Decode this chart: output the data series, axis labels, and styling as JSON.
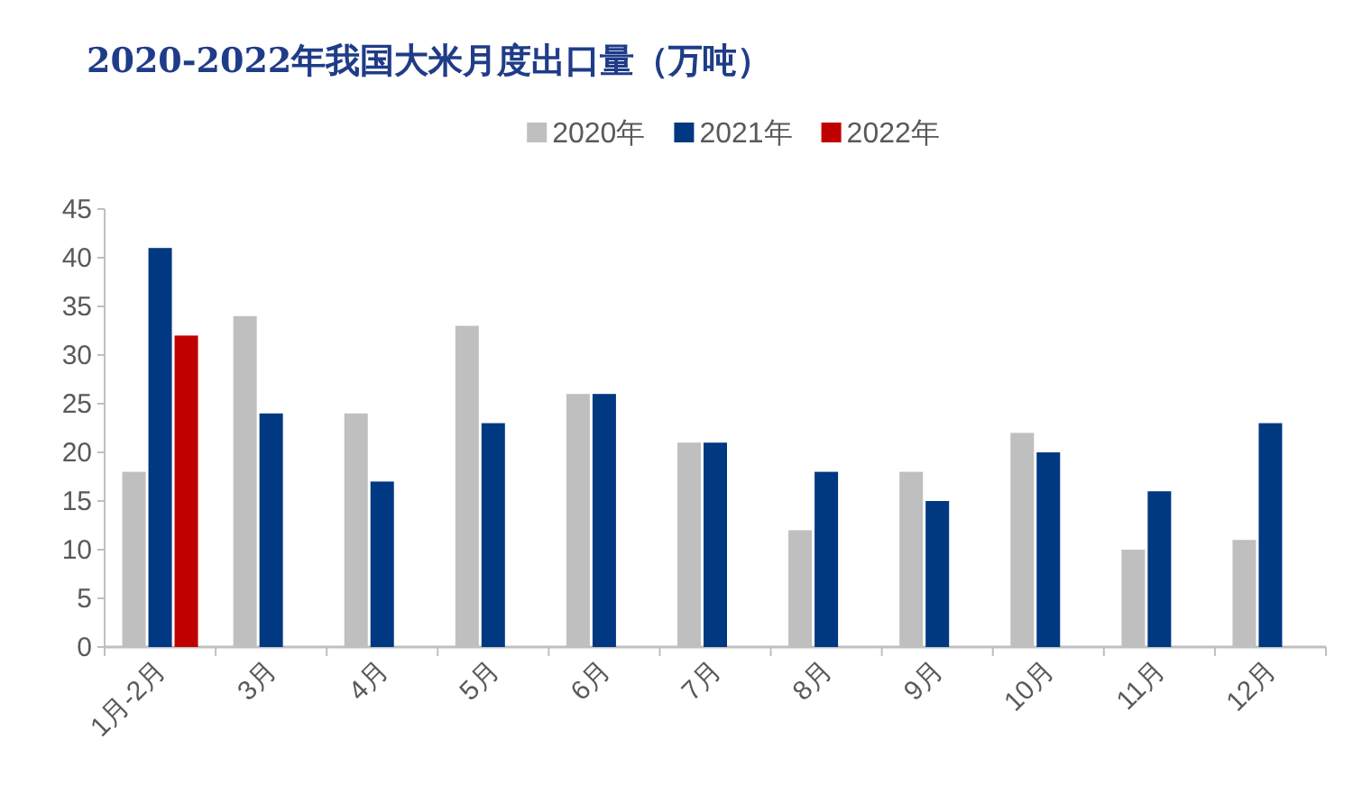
{
  "chart_data": {
    "type": "bar",
    "title": "2020-2022年我国大米月度出口量（万吨）",
    "categories": [
      "1月-2月",
      "3月",
      "4月",
      "5月",
      "6月",
      "7月",
      "8月",
      "9月",
      "10月",
      "11月",
      "12月"
    ],
    "series": [
      {
        "name": "2020年",
        "color": "#bfbfbf",
        "values": [
          18,
          34,
          24,
          33,
          26,
          21,
          12,
          18,
          22,
          10,
          11
        ]
      },
      {
        "name": "2021年",
        "color": "#003882",
        "values": [
          41,
          24,
          17,
          23,
          26,
          21,
          18,
          15,
          20,
          16,
          23
        ]
      },
      {
        "name": "2022年",
        "color": "#c00000",
        "values": [
          32,
          null,
          null,
          null,
          null,
          null,
          null,
          null,
          null,
          null,
          null
        ]
      }
    ],
    "ylim": [
      0,
      45
    ],
    "yticks": [
      0,
      5,
      10,
      15,
      20,
      25,
      30,
      35,
      40,
      45
    ],
    "legend": "top"
  }
}
